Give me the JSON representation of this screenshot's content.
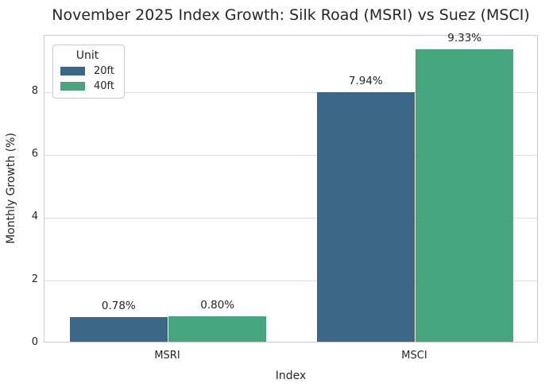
{
  "chart_data": {
    "type": "bar",
    "title": "November 2025 Index Growth: Silk Road (MSRI) vs Suez (MSCI)",
    "xlabel": "Index",
    "ylabel": "Monthly Growth (%)",
    "categories": [
      "MSRI",
      "MSCI"
    ],
    "series": [
      {
        "name": "20ft",
        "color": "#3d6786",
        "values": [
          0.78,
          7.94
        ],
        "labels": [
          "0.78%",
          "7.94%"
        ]
      },
      {
        "name": "40ft",
        "color": "#45a57c",
        "values": [
          0.8,
          9.33
        ],
        "labels": [
          "0.80%",
          "9.33%"
        ]
      }
    ],
    "ylim": [
      0,
      9.8
    ],
    "yticks": [
      0,
      2,
      4,
      6,
      8
    ],
    "grid": true,
    "legend": {
      "title": "Unit",
      "position": "upper-left"
    },
    "group_width_fraction": 0.8
  },
  "colors": {
    "grid": "#dddddd",
    "spine": "#cccccc",
    "text": "#262626",
    "background": "#ffffff"
  }
}
